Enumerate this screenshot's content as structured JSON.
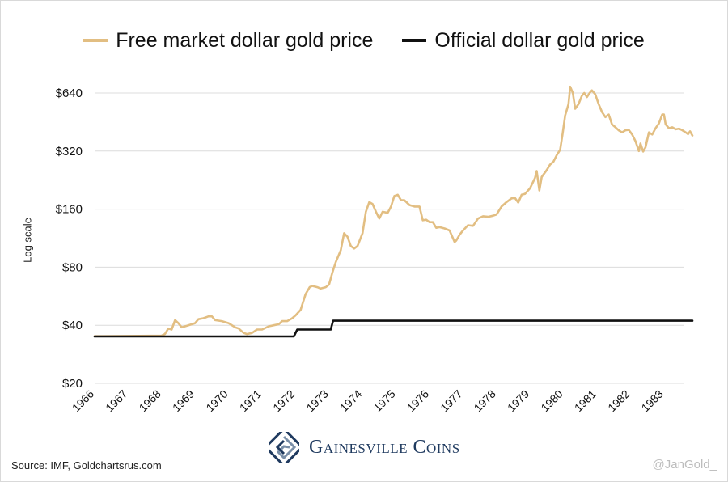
{
  "chart_data": {
    "type": "line",
    "ylabel": "Log scale",
    "y_scale": "log2",
    "ylim": [
      20,
      800
    ],
    "y_ticks": [
      20,
      40,
      80,
      160,
      320,
      640
    ],
    "y_tick_labels": [
      "$20",
      "$40",
      "$80",
      "$160",
      "$320",
      "$640"
    ],
    "xlim": [
      1966,
      1983.85
    ],
    "x_ticks": [
      "1966",
      "1967",
      "1968",
      "1969",
      "1970",
      "1971",
      "1972",
      "1973",
      "1974",
      "1975",
      "1976",
      "1977",
      "1978",
      "1979",
      "1980",
      "1981",
      "1982",
      "1983"
    ],
    "grid": "horizontal",
    "legend_position": "top",
    "series": [
      {
        "name": "Free market dollar gold price",
        "color": "#e2be82",
        "points": [
          [
            1966,
            35.1
          ],
          [
            1967,
            35.2
          ],
          [
            1968,
            35.3
          ],
          [
            1968.1,
            36
          ],
          [
            1968.2,
            38.5
          ],
          [
            1968.3,
            38
          ],
          [
            1968.4,
            42.5
          ],
          [
            1968.5,
            41
          ],
          [
            1968.6,
            39
          ],
          [
            1968.8,
            40
          ],
          [
            1969,
            41
          ],
          [
            1969.1,
            43
          ],
          [
            1969.25,
            43.5
          ],
          [
            1969.4,
            44.5
          ],
          [
            1969.5,
            44.5
          ],
          [
            1969.6,
            42.5
          ],
          [
            1969.8,
            42
          ],
          [
            1970,
            41
          ],
          [
            1970.2,
            39
          ],
          [
            1970.3,
            38.5
          ],
          [
            1970.45,
            36.5
          ],
          [
            1970.55,
            36
          ],
          [
            1970.7,
            36.5
          ],
          [
            1970.85,
            38
          ],
          [
            1971,
            38
          ],
          [
            1971.2,
            39.5
          ],
          [
            1971.35,
            40
          ],
          [
            1971.5,
            40.5
          ],
          [
            1971.6,
            42
          ],
          [
            1971.75,
            42
          ],
          [
            1971.9,
            43.5
          ],
          [
            1972,
            45
          ],
          [
            1972.15,
            48
          ],
          [
            1972.3,
            58
          ],
          [
            1972.42,
            63
          ],
          [
            1972.5,
            64
          ],
          [
            1972.65,
            63
          ],
          [
            1972.75,
            62
          ],
          [
            1972.9,
            63
          ],
          [
            1973,
            65
          ],
          [
            1973.1,
            75
          ],
          [
            1973.2,
            85
          ],
          [
            1973.35,
            98
          ],
          [
            1973.45,
            120
          ],
          [
            1973.55,
            115
          ],
          [
            1973.65,
            103
          ],
          [
            1973.75,
            100
          ],
          [
            1973.85,
            103
          ],
          [
            1974,
            120
          ],
          [
            1974.1,
            155
          ],
          [
            1974.2,
            174
          ],
          [
            1974.3,
            170
          ],
          [
            1974.4,
            155
          ],
          [
            1974.5,
            143
          ],
          [
            1974.6,
            155
          ],
          [
            1974.75,
            153
          ],
          [
            1974.85,
            165
          ],
          [
            1974.95,
            187
          ],
          [
            1975.05,
            190
          ],
          [
            1975.15,
            178
          ],
          [
            1975.25,
            178
          ],
          [
            1975.4,
            168
          ],
          [
            1975.55,
            165
          ],
          [
            1975.7,
            165
          ],
          [
            1975.8,
            140
          ],
          [
            1975.9,
            141
          ],
          [
            1976,
            137
          ],
          [
            1976.1,
            137
          ],
          [
            1976.2,
            128
          ],
          [
            1976.3,
            129
          ],
          [
            1976.45,
            127
          ],
          [
            1976.6,
            124
          ],
          [
            1976.7,
            113
          ],
          [
            1976.75,
            108
          ],
          [
            1976.8,
            110
          ],
          [
            1976.9,
            118
          ],
          [
            1977,
            124
          ],
          [
            1977.15,
            132
          ],
          [
            1977.3,
            131
          ],
          [
            1977.45,
            143
          ],
          [
            1977.6,
            147
          ],
          [
            1977.75,
            146
          ],
          [
            1977.9,
            148
          ],
          [
            1978,
            150
          ],
          [
            1978.15,
            165
          ],
          [
            1978.3,
            174
          ],
          [
            1978.45,
            182
          ],
          [
            1978.55,
            183
          ],
          [
            1978.65,
            173
          ],
          [
            1978.75,
            190
          ],
          [
            1978.85,
            192
          ],
          [
            1979,
            205
          ],
          [
            1979.15,
            232
          ],
          [
            1979.2,
            252
          ],
          [
            1979.28,
            200
          ],
          [
            1979.35,
            235
          ],
          [
            1979.5,
            255
          ],
          [
            1979.6,
            272
          ],
          [
            1979.7,
            282
          ],
          [
            1979.8,
            305
          ],
          [
            1979.9,
            325
          ],
          [
            1979.97,
            390
          ],
          [
            1980.05,
            490
          ],
          [
            1980.15,
            560
          ],
          [
            1980.2,
            690
          ],
          [
            1980.28,
            640
          ],
          [
            1980.35,
            530
          ],
          [
            1980.45,
            560
          ],
          [
            1980.55,
            620
          ],
          [
            1980.62,
            640
          ],
          [
            1980.7,
            610
          ],
          [
            1980.78,
            640
          ],
          [
            1980.85,
            660
          ],
          [
            1980.95,
            630
          ],
          [
            1981.05,
            560
          ],
          [
            1981.15,
            510
          ],
          [
            1981.25,
            480
          ],
          [
            1981.35,
            495
          ],
          [
            1981.45,
            440
          ],
          [
            1981.55,
            425
          ],
          [
            1981.65,
            410
          ],
          [
            1981.75,
            400
          ],
          [
            1981.85,
            410
          ],
          [
            1981.95,
            412
          ],
          [
            1982.05,
            390
          ],
          [
            1982.15,
            360
          ],
          [
            1982.25,
            320
          ],
          [
            1982.3,
            350
          ],
          [
            1982.38,
            318
          ],
          [
            1982.45,
            335
          ],
          [
            1982.55,
            400
          ],
          [
            1982.65,
            390
          ],
          [
            1982.75,
            420
          ],
          [
            1982.85,
            445
          ],
          [
            1982.95,
            495
          ],
          [
            1983,
            495
          ],
          [
            1983.05,
            440
          ],
          [
            1983.15,
            420
          ],
          [
            1983.25,
            425
          ],
          [
            1983.35,
            415
          ],
          [
            1983.45,
            418
          ],
          [
            1983.55,
            410
          ],
          [
            1983.65,
            400
          ],
          [
            1983.72,
            392
          ],
          [
            1983.78,
            405
          ],
          [
            1983.85,
            385
          ]
        ]
      },
      {
        "name": "Official dollar gold price",
        "color": "#111111",
        "points": [
          [
            1966,
            35
          ],
          [
            1971.95,
            35
          ],
          [
            1972.05,
            38
          ],
          [
            1973.05,
            38
          ],
          [
            1973.12,
            42.22
          ],
          [
            1983.85,
            42.22
          ]
        ]
      }
    ]
  },
  "footer": {
    "source": "Source: IMF, Goldchartsrus.com",
    "logo_text": "Gainesville Coins",
    "credit": "@JanGold_"
  },
  "colors": {
    "brand_navy": "#1f3a5f",
    "brand_steel": "#7a8fa8",
    "grid": "#dcdcdc"
  }
}
